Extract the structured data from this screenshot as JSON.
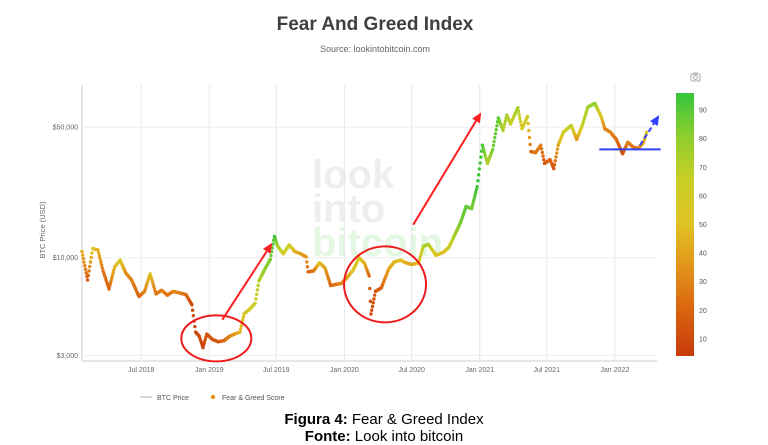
{
  "chart_data": {
    "type": "scatter",
    "title": "Fear And Greed Index",
    "subtitle": "Source: lookintobitcoin.com",
    "ylabel": "BTC Price (USD)",
    "y_scale": "log",
    "ylim": [
      2800,
      80000
    ],
    "xlim": [
      "2018-01-22",
      "2022-04-25"
    ],
    "x_ticks": [
      {
        "date": "2018-07-01",
        "label": "Jul 2018"
      },
      {
        "date": "2019-01-01",
        "label": "Jan 2019"
      },
      {
        "date": "2019-07-01",
        "label": "Jul 2019"
      },
      {
        "date": "2020-01-01",
        "label": "Jan 2020"
      },
      {
        "date": "2020-07-01",
        "label": "Jul 2020"
      },
      {
        "date": "2021-01-01",
        "label": "Jan 2021"
      },
      {
        "date": "2021-07-01",
        "label": "Jul 2021"
      },
      {
        "date": "2022-01-01",
        "label": "Jan 2022"
      }
    ],
    "y_ticks": [
      {
        "value": 3000,
        "label": "$3,000"
      },
      {
        "value": 10000,
        "label": "$10,000"
      },
      {
        "value": 50000,
        "label": "$50,000"
      }
    ],
    "colorbar": {
      "ticks": [
        10,
        20,
        30,
        40,
        50,
        60,
        70,
        80,
        90
      ],
      "range": [
        4,
        96
      ],
      "colors": [
        "#c63a0b",
        "#d9620f",
        "#e3921a",
        "#dfc223",
        "#c9cf26",
        "#8fce2d",
        "#35c53c"
      ]
    },
    "legend": {
      "position": "bottom-left",
      "items": [
        "BTC Price",
        "Fear & Greed Score"
      ]
    },
    "watermark": "look into bitcoin",
    "series": [
      {
        "name": "BTC Price",
        "points": [
          [
            "2018-01-22",
            10800,
            45
          ],
          [
            "2018-02-06",
            7600,
            15
          ],
          [
            "2018-02-20",
            11200,
            55
          ],
          [
            "2018-03-06",
            11000,
            45
          ],
          [
            "2018-03-20",
            8500,
            25
          ],
          [
            "2018-04-05",
            6800,
            20
          ],
          [
            "2018-04-20",
            8900,
            45
          ],
          [
            "2018-05-05",
            9700,
            55
          ],
          [
            "2018-05-20",
            8300,
            35
          ],
          [
            "2018-06-05",
            7600,
            30
          ],
          [
            "2018-06-25",
            6200,
            20
          ],
          [
            "2018-07-10",
            6600,
            30
          ],
          [
            "2018-07-25",
            8200,
            50
          ],
          [
            "2018-08-10",
            6400,
            25
          ],
          [
            "2018-08-25",
            6700,
            30
          ],
          [
            "2018-09-10",
            6300,
            25
          ],
          [
            "2018-09-25",
            6600,
            30
          ],
          [
            "2018-10-10",
            6500,
            30
          ],
          [
            "2018-10-30",
            6350,
            25
          ],
          [
            "2018-11-15",
            5600,
            10
          ],
          [
            "2018-11-25",
            4000,
            10
          ],
          [
            "2018-12-05",
            3800,
            10
          ],
          [
            "2018-12-15",
            3300,
            8
          ],
          [
            "2018-12-25",
            3900,
            15
          ],
          [
            "2019-01-10",
            3650,
            15
          ],
          [
            "2019-01-25",
            3550,
            15
          ],
          [
            "2019-02-10",
            3600,
            20
          ],
          [
            "2019-02-25",
            3800,
            30
          ],
          [
            "2019-03-10",
            3900,
            35
          ],
          [
            "2019-03-25",
            4000,
            45
          ],
          [
            "2019-04-05",
            5000,
            55
          ],
          [
            "2019-04-20",
            5300,
            60
          ],
          [
            "2019-05-05",
            5700,
            62
          ],
          [
            "2019-05-15",
            7500,
            70
          ],
          [
            "2019-05-30",
            8600,
            80
          ],
          [
            "2019-06-15",
            9800,
            85
          ],
          [
            "2019-06-26",
            13000,
            95
          ],
          [
            "2019-07-05",
            11500,
            75
          ],
          [
            "2019-07-20",
            10500,
            60
          ],
          [
            "2019-08-05",
            11700,
            65
          ],
          [
            "2019-08-20",
            10800,
            45
          ],
          [
            "2019-09-05",
            10500,
            40
          ],
          [
            "2019-09-20",
            10100,
            35
          ],
          [
            "2019-09-25",
            8400,
            20
          ],
          [
            "2019-10-10",
            8500,
            25
          ],
          [
            "2019-10-26",
            9400,
            50
          ],
          [
            "2019-11-10",
            8800,
            40
          ],
          [
            "2019-11-25",
            7100,
            20
          ],
          [
            "2019-12-10",
            7200,
            25
          ],
          [
            "2019-12-25",
            7300,
            30
          ],
          [
            "2020-01-10",
            7900,
            40
          ],
          [
            "2020-01-25",
            8600,
            50
          ],
          [
            "2020-02-10",
            10000,
            55
          ],
          [
            "2020-02-25",
            9300,
            45
          ],
          [
            "2020-03-08",
            8000,
            20
          ],
          [
            "2020-03-13",
            5000,
            10
          ],
          [
            "2020-03-25",
            6600,
            15
          ],
          [
            "2020-04-10",
            6900,
            20
          ],
          [
            "2020-04-30",
            8700,
            40
          ],
          [
            "2020-05-15",
            9500,
            45
          ],
          [
            "2020-06-01",
            9700,
            50
          ],
          [
            "2020-06-15",
            9400,
            45
          ],
          [
            "2020-07-01",
            9200,
            40
          ],
          [
            "2020-07-20",
            9400,
            50
          ],
          [
            "2020-08-01",
            11500,
            70
          ],
          [
            "2020-08-15",
            11800,
            75
          ],
          [
            "2020-09-05",
            10300,
            50
          ],
          [
            "2020-09-25",
            10700,
            50
          ],
          [
            "2020-10-10",
            11400,
            60
          ],
          [
            "2020-10-25",
            13200,
            75
          ],
          [
            "2020-11-10",
            15400,
            85
          ],
          [
            "2020-11-25",
            18800,
            90
          ],
          [
            "2020-12-10",
            18300,
            85
          ],
          [
            "2020-12-25",
            24000,
            95
          ],
          [
            "2021-01-08",
            40000,
            93
          ],
          [
            "2021-01-22",
            32000,
            70
          ],
          [
            "2021-02-05",
            38000,
            85
          ],
          [
            "2021-02-20",
            56000,
            90
          ],
          [
            "2021-03-05",
            48000,
            70
          ],
          [
            "2021-03-15",
            58000,
            75
          ],
          [
            "2021-03-25",
            52000,
            65
          ],
          [
            "2021-04-14",
            63500,
            75
          ],
          [
            "2021-04-25",
            49000,
            55
          ],
          [
            "2021-05-10",
            57000,
            60
          ],
          [
            "2021-05-19",
            37000,
            20
          ],
          [
            "2021-06-01",
            36500,
            25
          ],
          [
            "2021-06-15",
            40000,
            30
          ],
          [
            "2021-06-25",
            32000,
            15
          ],
          [
            "2021-07-10",
            33500,
            20
          ],
          [
            "2021-07-20",
            30000,
            15
          ],
          [
            "2021-08-01",
            40000,
            40
          ],
          [
            "2021-08-15",
            47000,
            60
          ],
          [
            "2021-09-05",
            51000,
            70
          ],
          [
            "2021-09-20",
            43000,
            35
          ],
          [
            "2021-10-05",
            51000,
            65
          ],
          [
            "2021-10-20",
            64000,
            75
          ],
          [
            "2021-11-08",
            67000,
            80
          ],
          [
            "2021-11-25",
            57000,
            50
          ],
          [
            "2021-12-05",
            49000,
            30
          ],
          [
            "2021-12-20",
            47000,
            30
          ],
          [
            "2022-01-05",
            43000,
            25
          ],
          [
            "2022-01-22",
            36000,
            12
          ],
          [
            "2022-02-05",
            41500,
            30
          ],
          [
            "2022-02-20",
            39000,
            25
          ],
          [
            "2022-03-05",
            38500,
            25
          ],
          [
            "2022-03-20",
            41500,
            40
          ],
          [
            "2022-03-28",
            47000,
            55
          ]
        ]
      }
    ],
    "annotations": [
      {
        "type": "ellipse",
        "center": [
          "2019-01-20",
          3700
        ]
      },
      {
        "type": "ellipse",
        "center": [
          "2020-04-20",
          7200
        ]
      },
      {
        "type": "arrow",
        "color": "#ff2020",
        "from": [
          "2019-02-05",
          4650
        ],
        "to": [
          "2019-06-20",
          12000
        ]
      },
      {
        "type": "arrow",
        "color": "#ff2020",
        "from": [
          "2020-07-05",
          15000
        ],
        "to": [
          "2021-01-05",
          60000
        ]
      },
      {
        "type": "arrow",
        "color": "#3040ff",
        "dashed": true,
        "from": [
          "2022-03-10",
          40000
        ],
        "to": [
          "2022-05-01",
          58000
        ]
      },
      {
        "type": "hline",
        "color": "#3040ff",
        "value": 38000,
        "from": "2021-11-20",
        "to": "2022-05-05"
      }
    ]
  },
  "caption": {
    "figure_label": "Figura 4:",
    "figure_text": " Fear & Greed Index",
    "source_label": "Fonte:",
    "source_text": " Look into bitcoin"
  }
}
